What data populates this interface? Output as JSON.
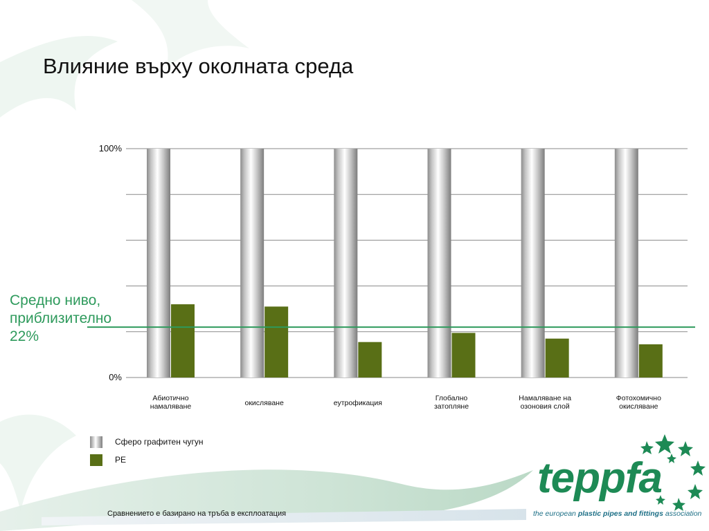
{
  "title": "Влияние върху околната среда",
  "average_label": [
    "Средно ниво,",
    "приблизително",
    "22%"
  ],
  "footnote": "Сравнението е базирано на тръба в експлоатация",
  "logo": {
    "name": "teppfa",
    "tagline_pre": "the european ",
    "tagline_bold": "plastic pipes and fittings",
    "tagline_post": " association"
  },
  "colors": {
    "pe": "#596f16",
    "average_line": "#2e9a5c",
    "logo": "#1d8a55"
  },
  "chart_data": {
    "type": "bar",
    "categories": [
      [
        "Абиотично",
        "намаляване"
      ],
      [
        "окисляване"
      ],
      [
        "еутрофикация"
      ],
      [
        "Глобално",
        "затопляне"
      ],
      [
        "Намаляване на",
        "озоновия слой"
      ],
      [
        "Фотохомично",
        "окисляване"
      ]
    ],
    "series": [
      {
        "name": "Сферо графитен чугун",
        "values": [
          100,
          100,
          100,
          100,
          100,
          100
        ],
        "style": "metallic-gray"
      },
      {
        "name": "PE",
        "values": [
          32,
          31,
          15.5,
          19.5,
          17,
          14.5
        ],
        "color": "#596f16"
      }
    ],
    "ylim": [
      0,
      100
    ],
    "ytick_labels": [
      "100%",
      "0%"
    ],
    "gridlines": [
      0,
      20,
      40,
      60,
      80,
      100
    ],
    "reference_line": {
      "value": 22
    },
    "legend_position": "bottom-left"
  }
}
